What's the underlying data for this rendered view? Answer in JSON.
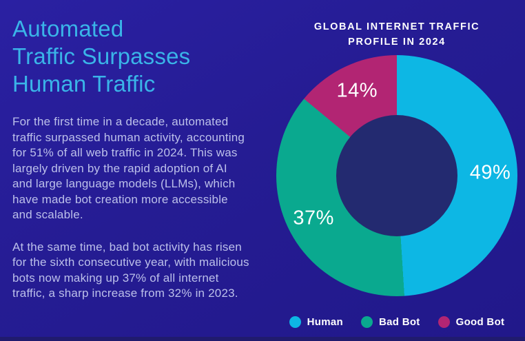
{
  "colors": {
    "background": "#251c93",
    "heading": "#3ab4e8",
    "body_text": "#bcc0ea",
    "white": "#ffffff",
    "hole": "#232a70",
    "bottom_bar": "#201b6e"
  },
  "left_panel": {
    "title": "Automated\nTraffic Surpasses\nHuman Traffic",
    "paragraph1": "For the first time in a decade, automated\ntraffic surpassed human activity, accounting\nfor 51% of all web traffic in 2024. This was\nlargely driven by the rapid adoption of AI\nand large language models (LLMs), which\nhave made bot creation more accessible\nand scalable.",
    "paragraph2": "At the same time, bad bot activity has risen\nfor the sixth consecutive year, with malicious\nbots now making up 37% of all internet\ntraffic, a sharp increase from 32% in 2023."
  },
  "chart_data": {
    "type": "pie",
    "donut": true,
    "title": "GLOBAL INTERNET TRAFFIC\nPROFILE IN 2024",
    "start_angle_deg": 0,
    "direction": "clockwise",
    "inner_radius_ratio": 0.5,
    "label_radius_ratio": 0.775,
    "legend_position": "bottom",
    "slices": [
      {
        "label": "Human",
        "value": 49,
        "display": "49%",
        "color": "#0db7e4"
      },
      {
        "label": "Bad Bot",
        "value": 37,
        "display": "37%",
        "color": "#0aa98f"
      },
      {
        "label": "Good Bot",
        "value": 14,
        "display": "14%",
        "color": "#b22573"
      }
    ]
  }
}
